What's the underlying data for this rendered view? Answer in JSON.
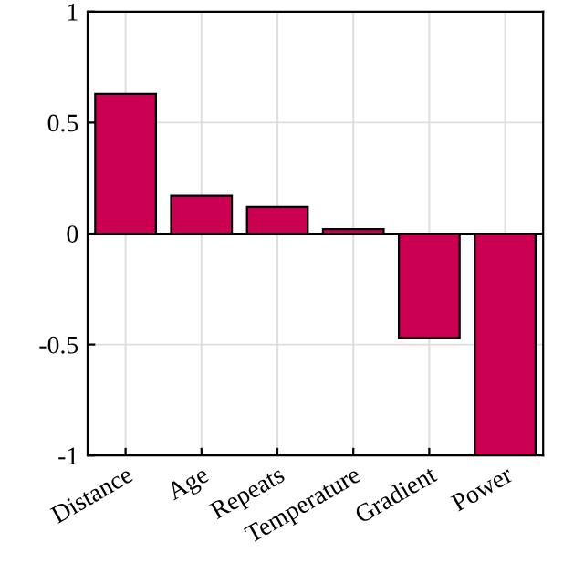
{
  "chart_data": {
    "type": "bar",
    "categories": [
      "Distance",
      "Age",
      "Repeats",
      "Temperature",
      "Gradient",
      "Power"
    ],
    "values": [
      0.63,
      0.17,
      0.12,
      0.02,
      -0.47,
      -1.0
    ],
    "color": "#cc0052",
    "ylim": [
      -1,
      1
    ],
    "yticks": [
      -1,
      -0.5,
      0,
      0.5,
      1
    ],
    "grid": true
  }
}
